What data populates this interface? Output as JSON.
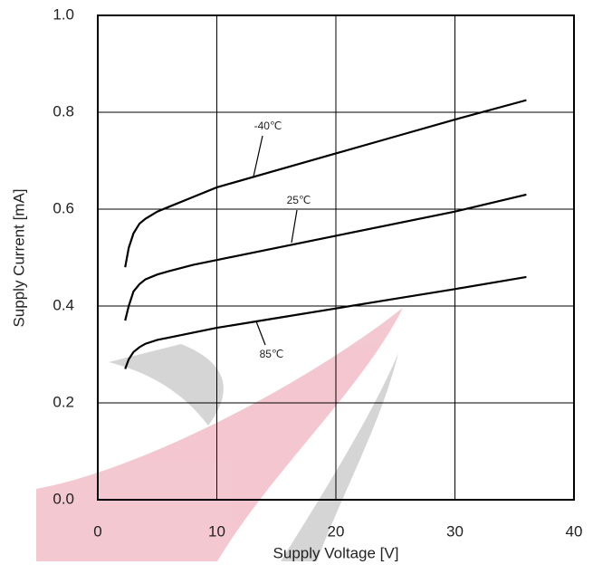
{
  "chart_data": {
    "type": "line",
    "x_label": "Supply Voltage [V]",
    "y_label": "Supply Current [mA]",
    "x": [
      2.3,
      2.6,
      3,
      3.5,
      4,
      5,
      6,
      8,
      10,
      15,
      20,
      25,
      30,
      36
    ],
    "series": [
      {
        "name": "-40℃",
        "color": "#000000",
        "values": [
          0.48,
          0.52,
          0.55,
          0.57,
          0.58,
          0.595,
          0.605,
          0.625,
          0.645,
          0.68,
          0.715,
          0.75,
          0.785,
          0.825
        ]
      },
      {
        "name": "25℃",
        "color": "#000000",
        "values": [
          0.37,
          0.4,
          0.43,
          0.445,
          0.455,
          0.465,
          0.472,
          0.485,
          0.495,
          0.52,
          0.545,
          0.57,
          0.595,
          0.63
        ]
      },
      {
        "name": "85℃",
        "color": "#000000",
        "values": [
          0.27,
          0.29,
          0.305,
          0.315,
          0.322,
          0.33,
          0.335,
          0.345,
          0.355,
          0.375,
          0.395,
          0.415,
          0.435,
          0.46
        ]
      }
    ],
    "xlim": [
      0,
      40
    ],
    "xticks": [
      0,
      10,
      20,
      30,
      40
    ],
    "ylim": [
      0,
      1
    ],
    "yticks": [
      {
        "value": 0,
        "label": "0.0"
      },
      0.2,
      0.4,
      0.6,
      0.8,
      {
        "value": 1,
        "label": "1.0"
      }
    ],
    "grid": true
  }
}
